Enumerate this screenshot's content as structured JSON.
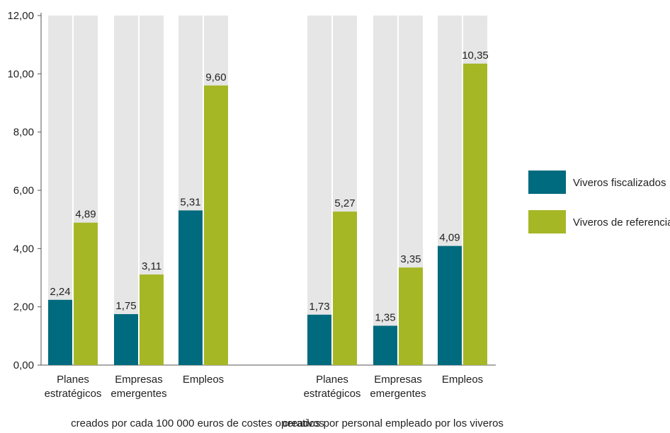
{
  "chart_data": {
    "type": "bar",
    "ylim": [
      0,
      12
    ],
    "yticks": [
      "0,00",
      "2,00",
      "4,00",
      "6,00",
      "8,00",
      "10,00",
      "12,00"
    ],
    "grid": false,
    "legend_position": "right",
    "colors": {
      "fiscalizados": "#006a7e",
      "referencia": "#a6b726",
      "background_column": "#e6e6e6"
    },
    "series_names": [
      "Viveros fiscalizados",
      "Viveros de referencia"
    ],
    "groups": [
      {
        "label": "creados por cada 100 000 euros de costes operativos",
        "categories": [
          {
            "label_lines": [
              "Planes",
              "estratégicos"
            ],
            "values": [
              2.24,
              4.89
            ],
            "value_labels": [
              "2,24",
              "4,89"
            ]
          },
          {
            "label_lines": [
              "Empresas",
              "emergentes"
            ],
            "values": [
              1.75,
              3.11
            ],
            "value_labels": [
              "1,75",
              "3,11"
            ]
          },
          {
            "label_lines": [
              "Empleos"
            ],
            "values": [
              5.31,
              9.6
            ],
            "value_labels": [
              "5,31",
              "9,60"
            ]
          }
        ]
      },
      {
        "label": "creados por personal empleado por los viveros",
        "categories": [
          {
            "label_lines": [
              "Planes",
              "estratégicos"
            ],
            "values": [
              1.73,
              5.27
            ],
            "value_labels": [
              "1,73",
              "5,27"
            ]
          },
          {
            "label_lines": [
              "Empresas",
              "emergentes"
            ],
            "values": [
              1.35,
              3.35
            ],
            "value_labels": [
              "1,35",
              "3,35"
            ]
          },
          {
            "label_lines": [
              "Empleos"
            ],
            "values": [
              4.09,
              10.35
            ],
            "value_labels": [
              "4,09",
              "10,35"
            ]
          }
        ]
      }
    ]
  }
}
